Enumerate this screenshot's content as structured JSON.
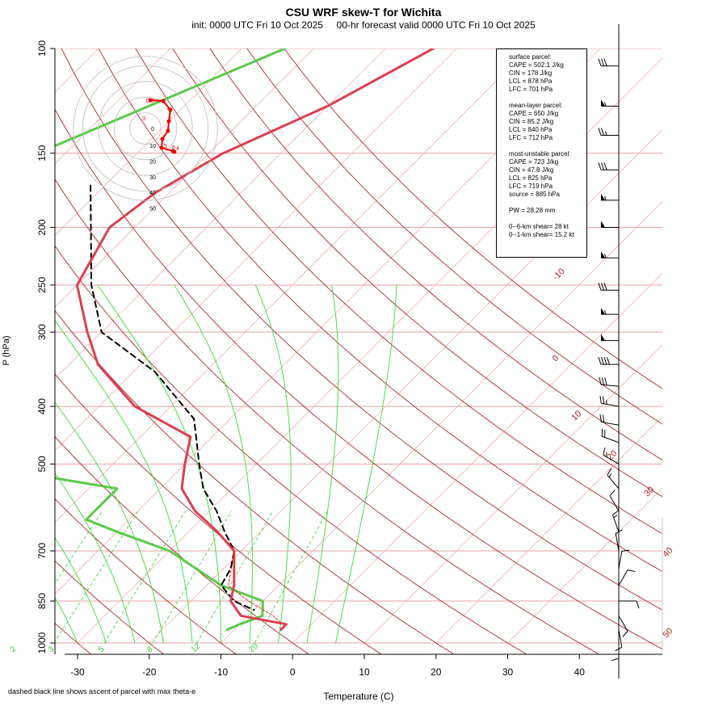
{
  "header": {
    "title": "CSU WRF skew-T for Wichita",
    "subtitle": "init: 0000 UTC Fri 10 Oct 2025     00-hr forecast valid 0000 UTC Fri 10 Oct 2025"
  },
  "footnote": "dashed black line shows ascent of parcel with max theta-e",
  "info": {
    "surface": {
      "heading": "surface parcel:",
      "cape": "CAPE = 502.1 J/kg",
      "cin": "CIN = 178 J/kg",
      "lcl": "LCL = 878 hPa",
      "lfc": "LFC = 701 hPa"
    },
    "mean_layer": {
      "heading": "mean-layer parcel:",
      "cape": "CAPE = 650 J/kg",
      "cin": "CIN = 85.2 J/kg",
      "lcl": "LCL = 840 hPa",
      "lfc": "LFC = 712 hPa"
    },
    "most_unstable": {
      "heading": "most-unstable parcel:",
      "cape": "CAPE = 723 J/kg",
      "cin": "CIN = 47.8 J/kg",
      "lcl": "LCL = 825 hPa",
      "lfc": "LFC = 719 hPa",
      "source": "source = 885 hPa"
    },
    "pw": "PW =  28.28 mm",
    "shear6": "0--6-km shear= 28 kt",
    "shear1": "0--1-km shear= 15.2 kt"
  },
  "colors": {
    "temperature": "#d94050",
    "dewpoint": "#5cc94a",
    "parcel": "#000000",
    "isotherm": "#f0b0b0",
    "dry_adiabat": "#a52a2a",
    "moist_adiabat": "#33dd33",
    "mixing_ratio": "#33cc33",
    "isobar": "#e8a0a0",
    "hodograph": "#ee0000"
  },
  "chart_data": {
    "type": "line",
    "title": "CSU WRF skew-T for Wichita",
    "xlabel": "Temperature (C)",
    "ylabel": "P (hPa)",
    "xlim": [
      -33,
      46
    ],
    "ylim": [
      1000,
      100
    ],
    "x_ticks": [
      "-30",
      "-20",
      "-10",
      "0",
      "10",
      "20",
      "30",
      "40"
    ],
    "y_ticks": [
      "100",
      "150",
      "200",
      "250",
      "300",
      "400",
      "500",
      "700",
      "850",
      "1000"
    ],
    "isotherm_labels": [
      "-10",
      "0",
      "10",
      "20",
      "30",
      "40",
      "50"
    ],
    "mixing_ratio_labels": [
      "1",
      "2",
      "3",
      "5",
      "8",
      "12",
      "20"
    ],
    "series": [
      {
        "key": "temperature",
        "points": [
          [
            -33.3,
            100
          ],
          [
            -40,
            125
          ],
          [
            -48,
            150
          ],
          [
            -52,
            175
          ],
          [
            -53.5,
            200
          ],
          [
            -50,
            250
          ],
          [
            -42,
            300
          ],
          [
            -36,
            340
          ],
          [
            -25,
            400
          ],
          [
            -13,
            450
          ],
          [
            -10,
            500
          ],
          [
            -7,
            550
          ],
          [
            -2,
            600
          ],
          [
            4,
            650
          ],
          [
            9,
            700
          ],
          [
            13.8,
            800
          ],
          [
            15.5,
            850
          ],
          [
            19,
            900
          ],
          [
            26.5,
            930
          ],
          [
            26.5,
            950
          ]
        ]
      },
      {
        "key": "dewpoint",
        "points": [
          [
            -54,
            100
          ],
          [
            -88,
            200
          ],
          [
            -90,
            250
          ],
          [
            -78,
            300
          ],
          [
            -67,
            340
          ],
          [
            -60,
            360
          ],
          [
            -59,
            400
          ],
          [
            -59,
            440
          ],
          [
            -53,
            480
          ],
          [
            -30,
            520
          ],
          [
            -16,
            550
          ],
          [
            -16,
            580
          ],
          [
            -16,
            620
          ],
          [
            -10,
            650
          ],
          [
            0,
            700
          ],
          [
            12,
            800
          ],
          [
            20,
            850
          ],
          [
            22,
            900
          ],
          [
            20,
            930
          ],
          [
            19,
            950
          ]
        ]
      },
      {
        "key": "parcel",
        "points": [
          [
            -62,
            170
          ],
          [
            -48,
            250
          ],
          [
            -40,
            300
          ],
          [
            -27,
            350
          ],
          [
            -15,
            420
          ],
          [
            -8,
            500
          ],
          [
            -4,
            550
          ],
          [
            1,
            600
          ],
          [
            5,
            650
          ],
          [
            9,
            700
          ],
          [
            11,
            750
          ],
          [
            12,
            800
          ],
          [
            16,
            850
          ],
          [
            20,
            880
          ]
        ]
      },
      {
        "key": "parcel_virtual",
        "points": [
          [
            9,
            700
          ],
          [
            13,
            800
          ],
          [
            18,
            850
          ],
          [
            23.5,
            900
          ],
          [
            26,
            930
          ]
        ]
      }
    ],
    "hodograph": {
      "ring_labels": [
        "10",
        "20",
        "30",
        "40",
        "50"
      ],
      "height_labels": [
        "0.3",
        "1",
        "2",
        "3",
        "4",
        "5",
        "6"
      ]
    },
    "wind_barbs": [
      {
        "p": 107,
        "speed": 30,
        "dir": 270
      },
      {
        "p": 125,
        "speed": 55,
        "dir": 270
      },
      {
        "p": 140,
        "speed": 25,
        "dir": 270
      },
      {
        "p": 160,
        "speed": 30,
        "dir": 270
      },
      {
        "p": 180,
        "speed": 55,
        "dir": 270
      },
      {
        "p": 200,
        "speed": 50,
        "dir": 270
      },
      {
        "p": 225,
        "speed": 55,
        "dir": 270
      },
      {
        "p": 255,
        "speed": 30,
        "dir": 270
      },
      {
        "p": 280,
        "speed": 55,
        "dir": 270
      },
      {
        "p": 310,
        "speed": 50,
        "dir": 270
      },
      {
        "p": 340,
        "speed": 40,
        "dir": 270
      },
      {
        "p": 370,
        "speed": 30,
        "dir": 275
      },
      {
        "p": 400,
        "speed": 25,
        "dir": 280
      },
      {
        "p": 430,
        "speed": 20,
        "dir": 280
      },
      {
        "p": 460,
        "speed": 20,
        "dir": 290
      },
      {
        "p": 500,
        "speed": 15,
        "dir": 300
      },
      {
        "p": 550,
        "speed": 15,
        "dir": 320
      },
      {
        "p": 600,
        "speed": 10,
        "dir": 330
      },
      {
        "p": 650,
        "speed": 15,
        "dir": 340
      },
      {
        "p": 700,
        "speed": 10,
        "dir": 350
      },
      {
        "p": 750,
        "speed": 10,
        "dir": 10
      },
      {
        "p": 800,
        "speed": 10,
        "dir": 30
      },
      {
        "p": 850,
        "speed": 10,
        "dir": 90
      },
      {
        "p": 900,
        "speed": 10,
        "dir": 150
      },
      {
        "p": 950,
        "speed": 10,
        "dir": 170
      },
      {
        "p": 990,
        "speed": 10,
        "dir": 180
      }
    ]
  }
}
